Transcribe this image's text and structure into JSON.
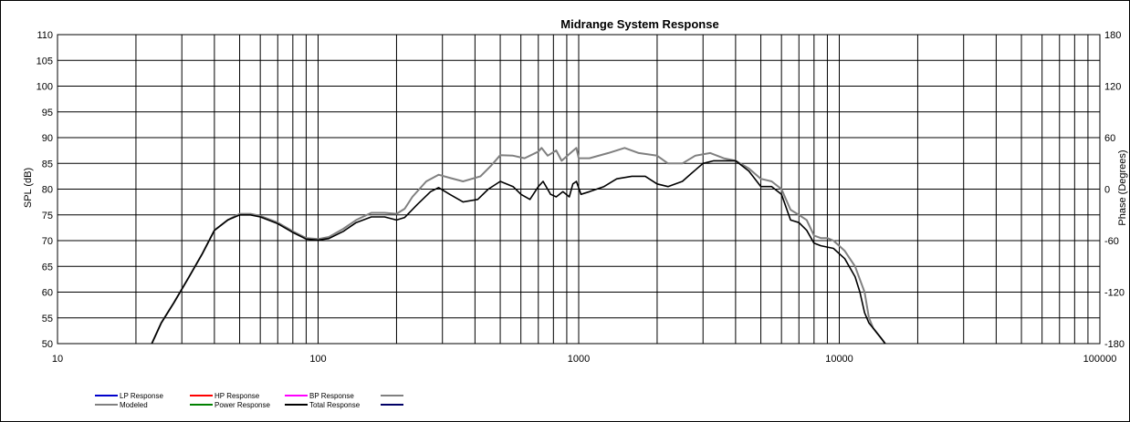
{
  "chart_data": {
    "type": "line",
    "title": "Midrange  System Response",
    "xlabel": "",
    "ylabel": "SPL (dB)",
    "y2label": "Phase (Degrees)",
    "x_scale": "log",
    "xlim": [
      10,
      100000
    ],
    "ylim": [
      50,
      110
    ],
    "y2lim": [
      -180,
      180
    ],
    "x_ticks": [
      "10",
      "100",
      "1000",
      "10000",
      "100000"
    ],
    "y_ticks": [
      "50",
      "55",
      "60",
      "65",
      "70",
      "75",
      "80",
      "85",
      "90",
      "95",
      "100",
      "105",
      "110"
    ],
    "y2_ticks": [
      "-180",
      "-120",
      "-60",
      "0",
      "60",
      "120",
      "180"
    ],
    "grid": true,
    "legend_position": "bottom",
    "legend": [
      {
        "label": "LP Response",
        "color": "#0000cc"
      },
      {
        "label": "HP Response",
        "color": "#ff0000"
      },
      {
        "label": "BP Response",
        "color": "#ff00ff"
      },
      {
        "label": "",
        "color": "#808080"
      },
      {
        "label": "Modeled",
        "color": "#808080"
      },
      {
        "label": "Power Response",
        "color": "#008000"
      },
      {
        "label": "Total Response",
        "color": "#000000"
      },
      {
        "label": "",
        "color": "#000066"
      }
    ],
    "series": [
      {
        "name": "Modeled",
        "color": "#808080",
        "points": [
          [
            23,
            50
          ],
          [
            25,
            54
          ],
          [
            28,
            58
          ],
          [
            32,
            63
          ],
          [
            36,
            67.5
          ],
          [
            40,
            72
          ],
          [
            45,
            74
          ],
          [
            50,
            75.2
          ],
          [
            55,
            75.2
          ],
          [
            60,
            74.8
          ],
          [
            70,
            73.5
          ],
          [
            80,
            71.8
          ],
          [
            90,
            70.5
          ],
          [
            100,
            70.3
          ],
          [
            110,
            70.7
          ],
          [
            125,
            72.3
          ],
          [
            140,
            74
          ],
          [
            160,
            75.4
          ],
          [
            180,
            75.4
          ],
          [
            200,
            75.2
          ],
          [
            215,
            76.2
          ],
          [
            230,
            78.5
          ],
          [
            260,
            81.5
          ],
          [
            290,
            82.8
          ],
          [
            320,
            82.2
          ],
          [
            360,
            81.5
          ],
          [
            420,
            82.5
          ],
          [
            460,
            84.5
          ],
          [
            500,
            86.6
          ],
          [
            560,
            86.5
          ],
          [
            620,
            86
          ],
          [
            700,
            87.3
          ],
          [
            720,
            88
          ],
          [
            760,
            86.5
          ],
          [
            820,
            87.5
          ],
          [
            860,
            85.5
          ],
          [
            930,
            87
          ],
          [
            980,
            88
          ],
          [
            1000,
            86
          ],
          [
            1100,
            86
          ],
          [
            1300,
            87
          ],
          [
            1500,
            88
          ],
          [
            1700,
            87
          ],
          [
            2000,
            86.5
          ],
          [
            2200,
            85
          ],
          [
            2500,
            85
          ],
          [
            2800,
            86.5
          ],
          [
            3200,
            87
          ],
          [
            3600,
            86
          ],
          [
            4000,
            85.5
          ],
          [
            4500,
            84
          ],
          [
            5000,
            82
          ],
          [
            5500,
            81.5
          ],
          [
            6000,
            80
          ],
          [
            6500,
            76
          ],
          [
            7000,
            75
          ],
          [
            7500,
            74
          ],
          [
            8000,
            71
          ],
          [
            8500,
            70.5
          ],
          [
            9000,
            70.5
          ],
          [
            9500,
            70
          ],
          [
            10500,
            68
          ],
          [
            11500,
            65
          ],
          [
            12500,
            60
          ],
          [
            13000,
            55
          ],
          [
            13500,
            53
          ],
          [
            14500,
            51
          ],
          [
            15000,
            50
          ]
        ]
      },
      {
        "name": "Total Response",
        "color": "#000000",
        "points": [
          [
            23,
            50
          ],
          [
            25,
            54
          ],
          [
            28,
            58
          ],
          [
            32,
            63
          ],
          [
            36,
            67.5
          ],
          [
            40,
            72
          ],
          [
            45,
            74
          ],
          [
            50,
            75
          ],
          [
            55,
            75
          ],
          [
            60,
            74.6
          ],
          [
            70,
            73.3
          ],
          [
            80,
            71.6
          ],
          [
            90,
            70.3
          ],
          [
            100,
            70.1
          ],
          [
            110,
            70.4
          ],
          [
            125,
            71.8
          ],
          [
            140,
            73.5
          ],
          [
            160,
            74.6
          ],
          [
            180,
            74.6
          ],
          [
            200,
            74
          ],
          [
            215,
            74.5
          ],
          [
            240,
            77
          ],
          [
            270,
            79.5
          ],
          [
            290,
            80.3
          ],
          [
            320,
            79
          ],
          [
            360,
            77.5
          ],
          [
            410,
            78
          ],
          [
            450,
            80
          ],
          [
            500,
            81.5
          ],
          [
            560,
            80.5
          ],
          [
            600,
            79
          ],
          [
            650,
            78
          ],
          [
            700,
            80.5
          ],
          [
            730,
            81.5
          ],
          [
            780,
            79
          ],
          [
            820,
            78.5
          ],
          [
            870,
            79.5
          ],
          [
            920,
            78.5
          ],
          [
            950,
            81
          ],
          [
            980,
            81.5
          ],
          [
            1020,
            79
          ],
          [
            1100,
            79.5
          ],
          [
            1250,
            80.5
          ],
          [
            1400,
            82
          ],
          [
            1600,
            82.5
          ],
          [
            1800,
            82.5
          ],
          [
            2000,
            81
          ],
          [
            2200,
            80.5
          ],
          [
            2500,
            81.5
          ],
          [
            2700,
            83
          ],
          [
            3000,
            85
          ],
          [
            3300,
            85.5
          ],
          [
            3700,
            85.5
          ],
          [
            4000,
            85.5
          ],
          [
            4500,
            83.5
          ],
          [
            5000,
            80.5
          ],
          [
            5500,
            80.5
          ],
          [
            6000,
            79
          ],
          [
            6500,
            74
          ],
          [
            7000,
            73.5
          ],
          [
            7500,
            72
          ],
          [
            8000,
            69.5
          ],
          [
            8500,
            69
          ],
          [
            9500,
            68.5
          ],
          [
            10500,
            66.5
          ],
          [
            11500,
            63
          ],
          [
            12000,
            60
          ],
          [
            12500,
            56
          ],
          [
            13000,
            54
          ],
          [
            13500,
            53
          ],
          [
            14500,
            51
          ],
          [
            15000,
            50
          ]
        ]
      }
    ]
  }
}
